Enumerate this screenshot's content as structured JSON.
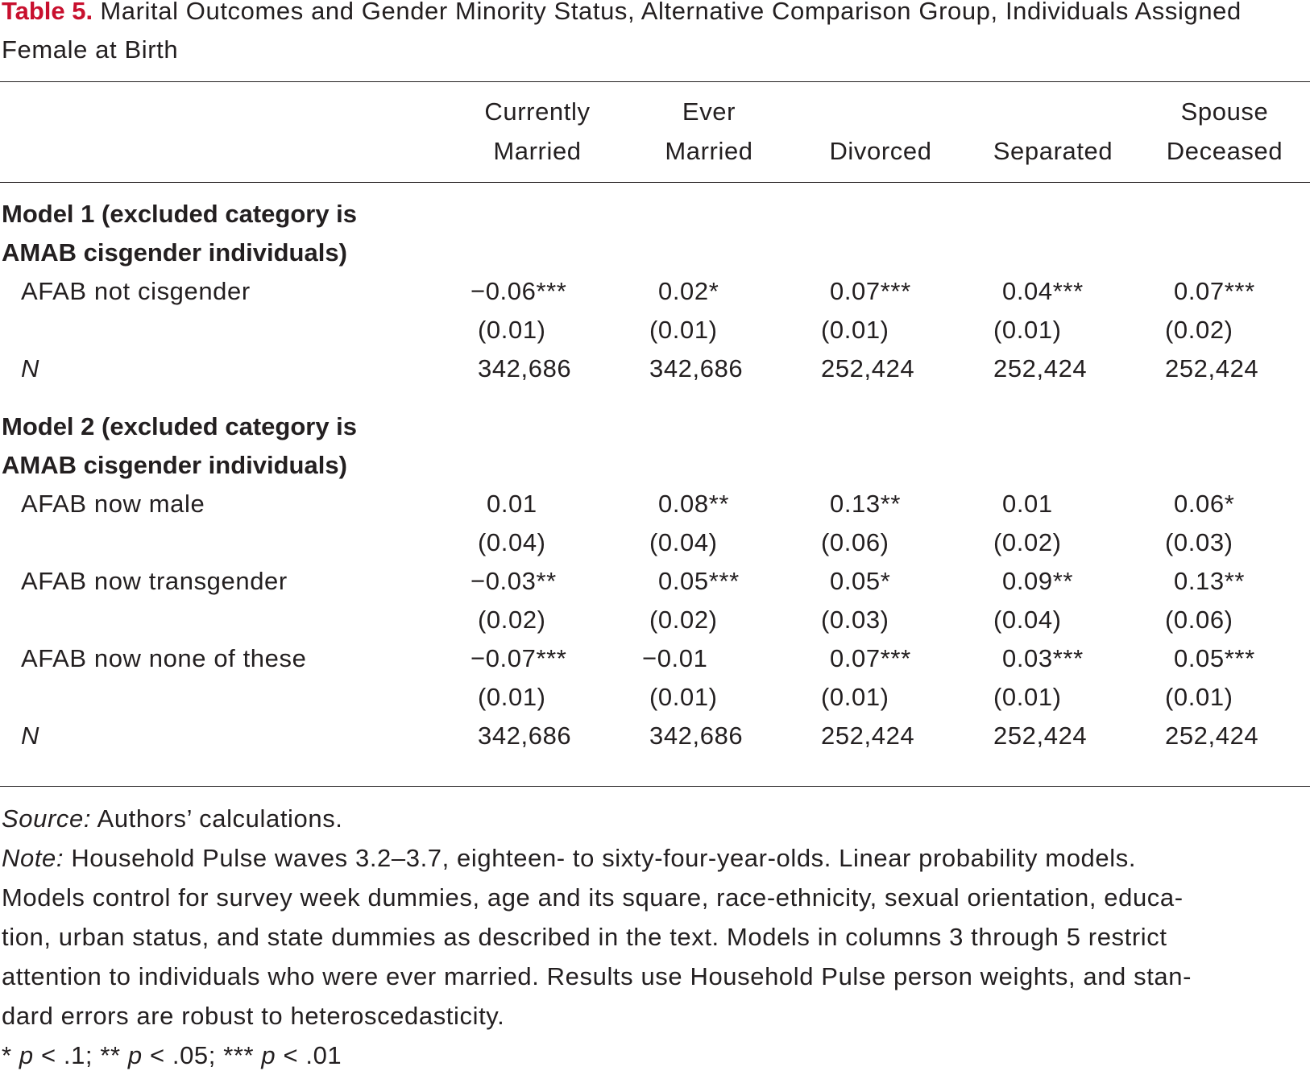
{
  "caption": {
    "label": "Table 5.",
    "title": "Marital Outcomes and Gender Minority Status, Alternative Comparison Group, Individuals Assigned Female at Birth"
  },
  "columns": [
    {
      "line1": "Currently",
      "line2": "Married"
    },
    {
      "line1": "Ever",
      "line2": "Married"
    },
    {
      "line1": "",
      "line2": "Divorced"
    },
    {
      "line1": "",
      "line2": "Separated"
    },
    {
      "line1": "Spouse",
      "line2": "Deceased"
    }
  ],
  "model1": {
    "heading_line1": "Model 1 (excluded category is",
    "heading_line2": "AMAB cisgender individuals)",
    "rows": [
      {
        "label": "AFAB not cisgender",
        "coefs": [
          "−0.06***",
          "0.02*",
          "0.07***",
          "0.04***",
          "0.07***"
        ],
        "ses": [
          "(0.01)",
          "(0.01)",
          "(0.01)",
          "(0.01)",
          "(0.02)"
        ]
      }
    ],
    "n_label": "N",
    "n": [
      "342,686",
      "342,686",
      "252,424",
      "252,424",
      "252,424"
    ]
  },
  "model2": {
    "heading_line1": "Model 2 (excluded category is",
    "heading_line2": "AMAB cisgender individuals)",
    "rows": [
      {
        "label": "AFAB now male",
        "coefs": [
          "0.01",
          "0.08**",
          "0.13**",
          "0.01",
          "0.06*"
        ],
        "ses": [
          "(0.04)",
          "(0.04)",
          "(0.06)",
          "(0.02)",
          "(0.03)"
        ]
      },
      {
        "label": "AFAB now transgender",
        "coefs": [
          "−0.03**",
          "0.05***",
          "0.05*",
          "0.09**",
          "0.13**"
        ],
        "ses": [
          "(0.02)",
          "(0.02)",
          "(0.03)",
          "(0.04)",
          "(0.06)"
        ]
      },
      {
        "label": "AFAB now none of these",
        "coefs": [
          "−0.07***",
          "−0.01",
          "0.07***",
          "0.03***",
          "0.05***"
        ],
        "ses": [
          "(0.01)",
          "(0.01)",
          "(0.01)",
          "(0.01)",
          "(0.01)"
        ]
      }
    ],
    "n_label": "N",
    "n": [
      "342,686",
      "342,686",
      "252,424",
      "252,424",
      "252,424"
    ]
  },
  "notes": {
    "source_label": "Source:",
    "source_text": " Authors’ calculations.",
    "note_label": "Note:",
    "note_line1": " Household Pulse waves 3.2–3.7, eighteen- to sixty-four-year-olds. Linear probability models.",
    "note_line2": "Models control for survey week dummies, age and its square, race-ethnicity, sexual orientation, educa-",
    "note_line3": "tion, urban status, and state dummies as described in the text. Models in columns 3 through 5 restrict",
    "note_line4": "attention to individuals who were ever married. Results use Household Pulse person weights, and stan-",
    "note_line5": "dard errors are robust to heteroscedasticity.",
    "sig": [
      {
        "stars": "* ",
        "p": "p",
        "rest": " < .1; "
      },
      {
        "stars": "** ",
        "p": "p",
        "rest": " < .05; "
      },
      {
        "stars": "*** ",
        "p": "p",
        "rest": " < .01"
      }
    ]
  }
}
